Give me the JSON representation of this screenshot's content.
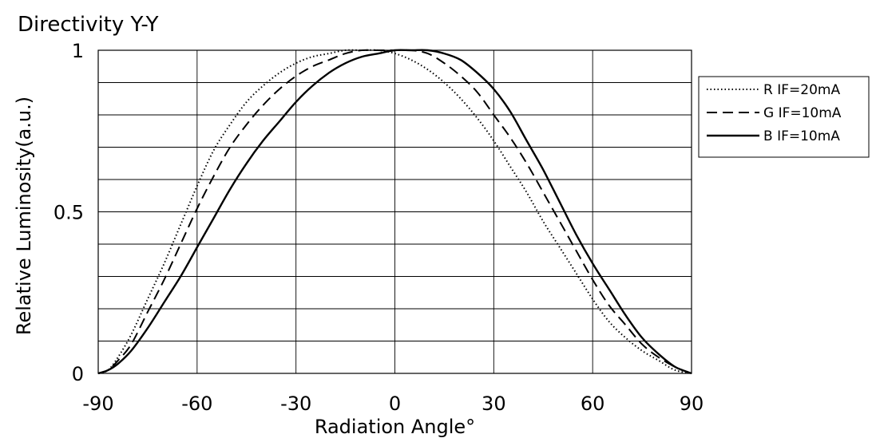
{
  "chart_data": {
    "type": "line",
    "title": "Directivity Y-Y",
    "xlabel": "Radiation Angle°",
    "ylabel": "Relative Luminosity(a.u.)",
    "xlim": [
      -90,
      90
    ],
    "ylim": [
      0,
      1
    ],
    "xticks": [
      -90,
      -60,
      -30,
      0,
      30,
      60,
      90
    ],
    "xtick_labels": [
      "-90",
      "-60",
      "-30",
      "0",
      "30",
      "60",
      "90"
    ],
    "yticks": [
      0,
      0.5,
      1
    ],
    "ytick_labels": [
      "0",
      "0.5",
      "1"
    ],
    "grid": true,
    "legend_position": "top-right",
    "series": [
      {
        "name": "R IF=20mA",
        "style": "dotted",
        "color": "#000000",
        "x": [
          -90,
          -87,
          -84,
          -80,
          -75,
          -70,
          -65,
          -60,
          -55,
          -50,
          -45,
          -40,
          -35,
          -30,
          -25,
          -20,
          -15,
          -10,
          -5,
          0,
          5,
          10,
          15,
          20,
          25,
          30,
          35,
          40,
          45,
          50,
          55,
          60,
          65,
          70,
          75,
          80,
          85,
          90
        ],
        "y": [
          0.0,
          0.01,
          0.05,
          0.12,
          0.23,
          0.34,
          0.46,
          0.58,
          0.69,
          0.77,
          0.84,
          0.89,
          0.93,
          0.96,
          0.98,
          0.99,
          1.0,
          1.0,
          1.0,
          0.99,
          0.97,
          0.94,
          0.9,
          0.85,
          0.79,
          0.72,
          0.64,
          0.56,
          0.47,
          0.39,
          0.31,
          0.23,
          0.16,
          0.11,
          0.07,
          0.04,
          0.01,
          0.0
        ]
      },
      {
        "name": "G IF=10mA",
        "style": "dashed",
        "color": "#000000",
        "x": [
          -90,
          -87,
          -84,
          -80,
          -75,
          -70,
          -65,
          -60,
          -55,
          -50,
          -45,
          -40,
          -35,
          -30,
          -25,
          -20,
          -15,
          -10,
          -5,
          0,
          5,
          10,
          15,
          20,
          25,
          30,
          35,
          40,
          45,
          50,
          55,
          60,
          65,
          70,
          75,
          80,
          85,
          90
        ],
        "y": [
          0.0,
          0.01,
          0.04,
          0.09,
          0.19,
          0.29,
          0.4,
          0.51,
          0.61,
          0.7,
          0.77,
          0.83,
          0.88,
          0.92,
          0.95,
          0.97,
          0.99,
          1.0,
          1.0,
          1.0,
          1.0,
          0.99,
          0.96,
          0.92,
          0.87,
          0.8,
          0.73,
          0.65,
          0.56,
          0.47,
          0.38,
          0.29,
          0.21,
          0.15,
          0.09,
          0.05,
          0.02,
          0.0
        ]
      },
      {
        "name": "B IF=10mA",
        "style": "solid",
        "color": "#000000",
        "x": [
          -90,
          -87,
          -84,
          -80,
          -75,
          -70,
          -65,
          -60,
          -55,
          -50,
          -45,
          -40,
          -35,
          -30,
          -25,
          -20,
          -15,
          -10,
          -5,
          0,
          5,
          10,
          15,
          20,
          25,
          30,
          35,
          40,
          45,
          50,
          55,
          60,
          65,
          70,
          75,
          80,
          85,
          90
        ],
        "y": [
          0.0,
          0.01,
          0.03,
          0.07,
          0.14,
          0.22,
          0.3,
          0.39,
          0.48,
          0.57,
          0.65,
          0.72,
          0.78,
          0.84,
          0.89,
          0.93,
          0.96,
          0.98,
          0.99,
          1.0,
          1.0,
          1.0,
          0.99,
          0.97,
          0.93,
          0.88,
          0.81,
          0.72,
          0.63,
          0.53,
          0.43,
          0.34,
          0.26,
          0.18,
          0.11,
          0.06,
          0.02,
          0.0
        ]
      }
    ]
  }
}
